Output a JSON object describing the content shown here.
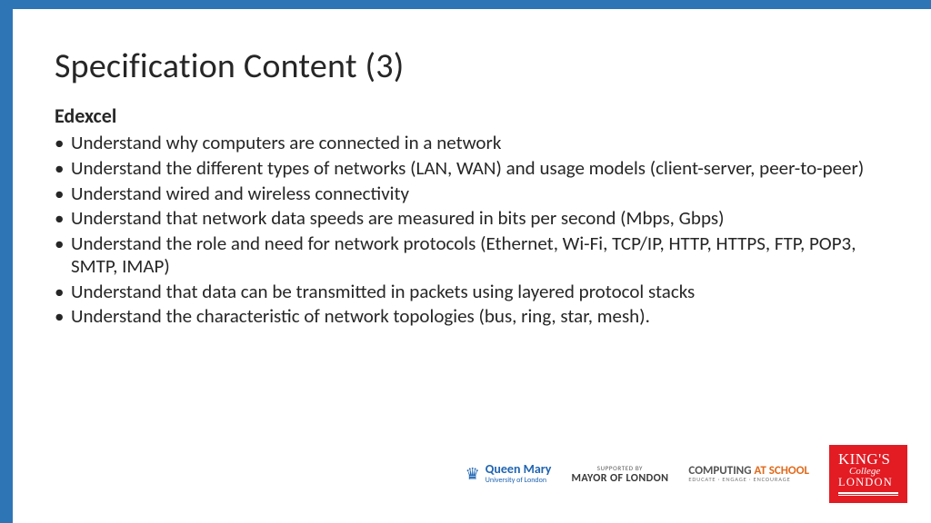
{
  "border_color": "#2e75b6",
  "title": "Specification Content (3)",
  "subtitle": "Edexcel",
  "bullets": [
    "Understand why computers are connected in a network",
    "Understand the different types of networks (LAN, WAN) and usage models (client-server, peer-to-peer)",
    "Understand wired and wireless connectivity",
    "Understand that network data speeds are measured in bits per second (Mbps, Gbps)",
    "Understand the role and need for network protocols (Ethernet, Wi-Fi, TCP/IP, HTTP, HTTPS, FTP, POP3, SMTP, IMAP)",
    "Understand that data can be transmitted in packets using layered protocol stacks",
    "Understand the characteristic of network topologies (bus, ring, star, mesh)."
  ],
  "logos": {
    "queen_mary": {
      "main": "Queen Mary",
      "sub": "University of London",
      "color": "#1f64b1",
      "crown": "♛"
    },
    "mayor": {
      "supported": "SUPPORTED BY",
      "main": "MAYOR OF LONDON"
    },
    "cas": {
      "part1": "COMPUTING ",
      "part2": "AT SCHOOL",
      "tagline": "EDUCATE · ENGAGE · ENCOURAGE",
      "color1": "#555555",
      "color2": "#e06a1c"
    },
    "kings": {
      "line1": "KING'S",
      "line2": "College",
      "line3": "LONDON",
      "bg": "#e31b23"
    }
  }
}
